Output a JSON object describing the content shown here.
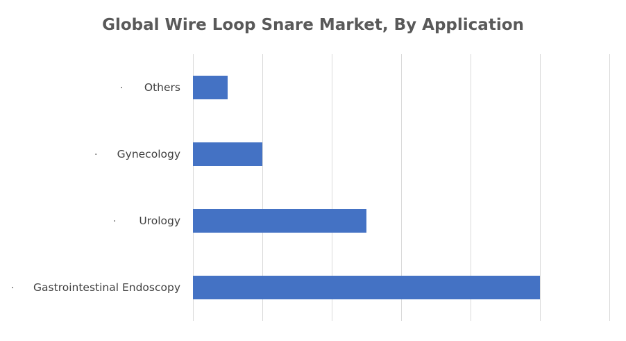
{
  "chart_data": {
    "type": "bar",
    "orientation": "horizontal",
    "title": "Global Wire Loop Snare Market, By Application",
    "categories": [
      "Others",
      "Gynecology",
      "Urology",
      "Gastrointestinal Endoscopy"
    ],
    "category_bullet": "·",
    "values": [
      0.5,
      1.0,
      2.5,
      5.0
    ],
    "xlim": [
      0,
      6
    ],
    "x_major_step": 1,
    "x_tick_labels_shown": false,
    "xlabel": "",
    "ylabel": "",
    "grid": "vertical",
    "legend": "none",
    "colors": {
      "bar": "#4472c4",
      "gridline": "#d9d9d9",
      "title": "#595959",
      "label": "#404040"
    }
  }
}
